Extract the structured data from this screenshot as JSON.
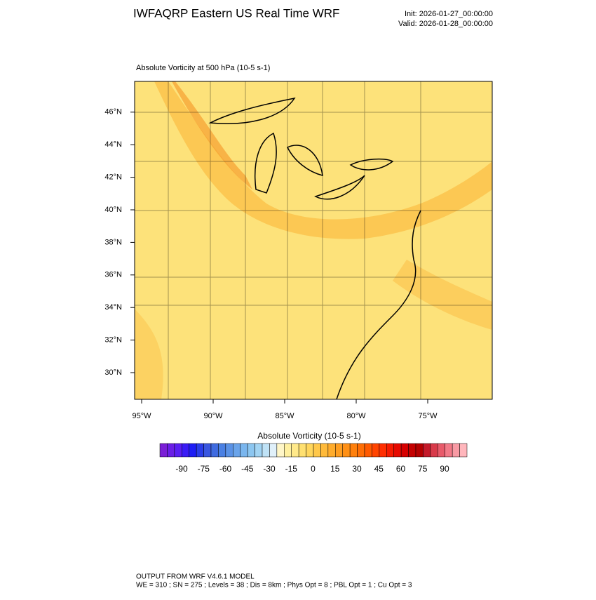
{
  "header": {
    "title": "IWFAQRP Eastern US Real Time WRF",
    "init": "Init: 2026-01-27_00:00:00",
    "valid": "Valid: 2026-01-28_00:00:00"
  },
  "map": {
    "title": "Absolute Vorticity at 500 hPa   (10-5 s-1)",
    "lat_labels": [
      "30°N",
      "32°N",
      "34°N",
      "36°N",
      "38°N",
      "40°N",
      "42°N",
      "44°N",
      "46°N"
    ],
    "lon_labels": [
      "95°W",
      "90°W",
      "85°W",
      "80°W",
      "75°W"
    ]
  },
  "colorbar": {
    "title": "Absolute Vorticity  (10-5 s-1)",
    "colors": [
      "#7a1fd6",
      "#6a1ee6",
      "#5a1ff2",
      "#3b1cf5",
      "#1e1ef5",
      "#2a3de8",
      "#3a57e0",
      "#3f6be0",
      "#4a80e3",
      "#5a92e6",
      "#6aa4ea",
      "#7ab6ee",
      "#8cc6f0",
      "#a2d4f3",
      "#bfe2f6",
      "#e0f0fa",
      "#fff6c8",
      "#fff0a0",
      "#ffe98a",
      "#ffe070",
      "#ffd65c",
      "#ffc84a",
      "#ffba3a",
      "#ffac2c",
      "#ff9e20",
      "#ff9015",
      "#ff800c",
      "#ff6e05",
      "#ff5a00",
      "#ff4400",
      "#ff2e00",
      "#f51a00",
      "#e60a00",
      "#d60000",
      "#c40000",
      "#b40000",
      "#c41a2a",
      "#d83a4a",
      "#e85a6a",
      "#f27a88",
      "#f89aa4",
      "#ffb6bc"
    ],
    "ticks": [
      -90,
      -75,
      -60,
      -45,
      -30,
      -15,
      0,
      15,
      30,
      45,
      60,
      75,
      90
    ]
  },
  "footer": {
    "line1": "OUTPUT FROM WRF V4.6.1 MODEL",
    "line2": "WE = 310 ; SN = 275 ; Levels = 38 ; Dis = 8km ; Phys Opt = 8 ; PBL Opt = 1 ; Cu Opt = 3"
  }
}
